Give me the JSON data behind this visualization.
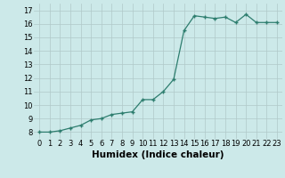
{
  "x": [
    0,
    1,
    2,
    3,
    4,
    5,
    6,
    7,
    8,
    9,
    10,
    11,
    12,
    13,
    14,
    15,
    16,
    17,
    18,
    19,
    20,
    21,
    22,
    23
  ],
  "y": [
    8.0,
    8.0,
    8.1,
    8.3,
    8.5,
    8.9,
    9.0,
    9.3,
    9.4,
    9.5,
    10.4,
    10.4,
    11.0,
    11.9,
    15.5,
    16.6,
    16.5,
    16.4,
    16.5,
    16.1,
    16.7,
    16.1,
    16.1,
    16.1
  ],
  "xlabel": "Humidex (Indice chaleur)",
  "ylim": [
    7.5,
    17.5
  ],
  "xlim": [
    -0.5,
    23.5
  ],
  "yticks": [
    8,
    9,
    10,
    11,
    12,
    13,
    14,
    15,
    16,
    17
  ],
  "xticks": [
    0,
    1,
    2,
    3,
    4,
    5,
    6,
    7,
    8,
    9,
    10,
    11,
    12,
    13,
    14,
    15,
    16,
    17,
    18,
    19,
    20,
    21,
    22,
    23
  ],
  "line_color": "#2d7d6e",
  "marker_color": "#2d7d6e",
  "bg_color": "#cce9e9",
  "grid_color": "#b0c8c8",
  "xlabel_fontsize": 7.5,
  "tick_fontsize": 6.0
}
